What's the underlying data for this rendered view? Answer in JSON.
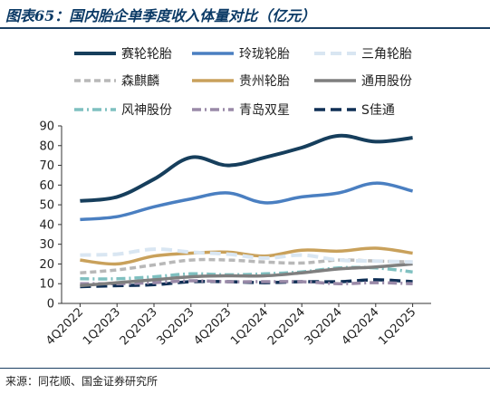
{
  "title": "图表65：国内胎企单季度收入体量对比（亿元）",
  "source": "来源：同花顺、国金证券研究所",
  "chart_data": {
    "type": "line",
    "categories": [
      "4Q2022",
      "1Q2023",
      "2Q2023",
      "3Q2023",
      "4Q2023",
      "1Q2024",
      "2Q2024",
      "3Q2024",
      "4Q2024",
      "1Q2025"
    ],
    "ylim": [
      0,
      90
    ],
    "yticks": [
      0,
      10,
      20,
      30,
      40,
      50,
      60,
      70,
      80,
      90
    ],
    "legend_position": "top",
    "grid": false,
    "series": [
      {
        "name": "赛轮轮胎",
        "color": "#163e5c",
        "dash": "solid",
        "width": 4,
        "values": [
          52,
          54,
          63,
          74,
          70,
          74,
          79,
          85,
          82,
          84
        ]
      },
      {
        "name": "玲珑轮胎",
        "color": "#4a7fc1",
        "dash": "solid",
        "width": 3.5,
        "values": [
          42.5,
          44,
          49,
          53,
          56,
          51,
          54,
          56,
          61,
          57
        ]
      },
      {
        "name": "三角轮胎",
        "color": "#d9e6f2",
        "dash": "longdash",
        "width": 4,
        "values": [
          24.5,
          25,
          27.5,
          26,
          25,
          23,
          24.5,
          22,
          21.5,
          21
        ]
      },
      {
        "name": "森麒麟",
        "color": "#b8b8b8",
        "dash": "dash",
        "width": 3.5,
        "values": [
          15.5,
          17,
          19.5,
          22,
          22,
          21,
          20.5,
          22,
          21.5,
          21
        ]
      },
      {
        "name": "贵州轮胎",
        "color": "#c9a15b",
        "dash": "solid",
        "width": 3.5,
        "values": [
          22,
          20,
          24,
          25.5,
          26,
          24,
          27,
          26.5,
          28,
          25.5
        ]
      },
      {
        "name": "通用股份",
        "color": "#7f7f7f",
        "dash": "solid",
        "width": 3.5,
        "values": [
          9,
          10.5,
          12,
          13.5,
          14,
          14,
          15.5,
          17.5,
          18.5,
          20
        ]
      },
      {
        "name": "风神股份",
        "color": "#7fc0c0",
        "dash": "dashdot",
        "width": 3.5,
        "values": [
          12.5,
          12.5,
          13.5,
          15,
          14.5,
          15,
          16,
          18,
          18,
          16
        ]
      },
      {
        "name": "青岛双星",
        "color": "#9a8aa8",
        "dash": "dashdot",
        "width": 3.5,
        "values": [
          10,
          10,
          10.5,
          11.5,
          11,
          11,
          11,
          10,
          10.5,
          10
        ]
      },
      {
        "name": "S佳通",
        "color": "#0f2f55",
        "dash": "longdash",
        "width": 3.5,
        "values": [
          8.5,
          9,
          9.5,
          11,
          11,
          10.5,
          11,
          11,
          12,
          11
        ]
      }
    ]
  }
}
